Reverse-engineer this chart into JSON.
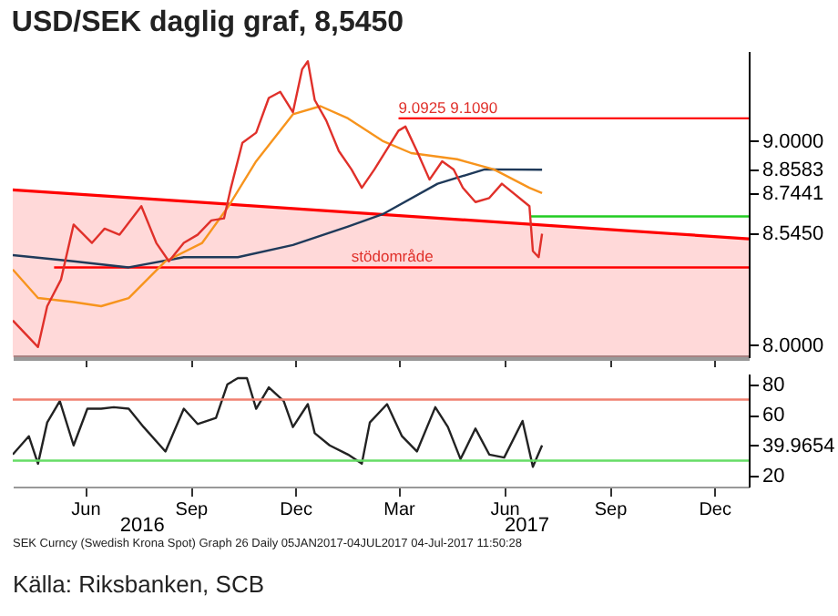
{
  "chart_data": [
    {
      "type": "line",
      "title": "USD/SEK daglig graf, 8,5450",
      "xlim": [
        "2016-03-30",
        "2017-12-31"
      ],
      "ylim": [
        7.94,
        9.44
      ],
      "xticks": [
        {
          "value": "2016-06-01",
          "label": null
        },
        {
          "value": "2016-09-01",
          "label": null
        },
        {
          "value": "2016-12-01",
          "label": null
        },
        {
          "value": "2017-03-01",
          "label": null
        },
        {
          "value": "2017-06-01",
          "label": null
        },
        {
          "value": "2017-09-01",
          "label": null
        },
        {
          "value": "2017-12-01",
          "label": null
        }
      ],
      "yticks": [
        {
          "value": 8,
          "label": "8.0000"
        },
        {
          "value": 8.545,
          "label": "8.5450"
        },
        {
          "value": 8.7441,
          "label": "8.7441"
        },
        {
          "value": 8.8583,
          "label": "8.8583"
        },
        {
          "value": 9,
          "label": "9.0000"
        }
      ],
      "tick_labels": "y",
      "grid": false,
      "series": [
        {
          "type": "area",
          "color": "#ff0000",
          "x": [
            "2016-03-30",
            "2017-12-31"
          ],
          "values": [
            8.76,
            8.52
          ]
        },
        {
          "color": "#ff0000",
          "x": [
            "2016-05-05",
            "2017-12-31"
          ],
          "values": [
            8.38,
            8.38
          ]
        },
        {
          "color": "#ff0000",
          "x": [
            "2017-03-01",
            "2017-12-31"
          ],
          "values": [
            9.11,
            9.11
          ]
        },
        {
          "color": "#22cc22",
          "x": [
            "2017-06-23",
            "2017-12-31"
          ],
          "values": [
            8.63,
            8.63
          ]
        },
        {
          "color": "#1f3a5a",
          "x": [
            "2016-03-30",
            "2016-05-22",
            "2016-07-09",
            "2016-08-26",
            "2016-10-12",
            "2016-11-29",
            "2017-01-16",
            "2017-02-15",
            "2017-04-04",
            "2017-05-15",
            "2017-07-04"
          ],
          "values": [
            8.44,
            8.41,
            8.38,
            8.43,
            8.43,
            8.49,
            8.58,
            8.64,
            8.79,
            8.86,
            8.8583
          ]
        },
        {
          "color": "#f7941d",
          "x": [
            "2016-03-30",
            "2016-04-21",
            "2016-05-22",
            "2016-06-15",
            "2016-07-09",
            "2016-08-10",
            "2016-09-11",
            "2016-10-04",
            "2016-10-28",
            "2016-11-29",
            "2016-12-23",
            "2017-01-16",
            "2017-02-15",
            "2017-03-12",
            "2017-04-21",
            "2017-05-23",
            "2017-06-23",
            "2017-07-04"
          ],
          "values": [
            8.37,
            8.23,
            8.21,
            8.19,
            8.23,
            8.41,
            8.5,
            8.68,
            8.9,
            9.13,
            9.17,
            9.11,
            9.0,
            8.94,
            8.91,
            8.86,
            8.77,
            8.7441
          ]
        },
        {
          "color": "#e0302a",
          "x": [
            "2016-03-30",
            "2016-04-21",
            "2016-04-29",
            "2016-05-11",
            "2016-05-22",
            "2016-06-07",
            "2016-06-18",
            "2016-07-01",
            "2016-07-20",
            "2016-08-02",
            "2016-08-13",
            "2016-08-26",
            "2016-09-07",
            "2016-09-19",
            "2016-09-30",
            "2016-10-06",
            "2016-10-16",
            "2016-10-28",
            "2016-11-08",
            "2016-11-18",
            "2016-11-29",
            "2016-12-07",
            "2016-12-12",
            "2016-12-18",
            "2016-12-28",
            "2017-01-08",
            "2017-01-19",
            "2017-01-28",
            "2017-02-08",
            "2017-02-19",
            "2017-03-01",
            "2017-03-07",
            "2017-03-17",
            "2017-03-28",
            "2017-04-08",
            "2017-04-18",
            "2017-04-26",
            "2017-05-07",
            "2017-05-19",
            "2017-05-30",
            "2017-06-23",
            "2017-06-26",
            "2017-07-01",
            "2017-07-04"
          ],
          "values": [
            8.12,
            7.99,
            8.19,
            8.32,
            8.59,
            8.5,
            8.57,
            8.54,
            8.68,
            8.5,
            8.41,
            8.5,
            8.54,
            8.61,
            8.62,
            8.77,
            8.99,
            9.04,
            9.21,
            9.24,
            9.14,
            9.35,
            9.39,
            9.2,
            9.1,
            8.95,
            8.86,
            8.77,
            8.86,
            8.96,
            9.05,
            9.07,
            8.95,
            8.81,
            8.9,
            8.86,
            8.77,
            8.7,
            8.72,
            8.79,
            8.68,
            8.46,
            8.43,
            8.545
          ]
        }
      ],
      "annotations": [
        {
          "text": "9.0925",
          "x": "2017-03-01",
          "y": 9.11
        },
        {
          "text": "9.1090",
          "x": "2017-04-15",
          "y": 9.11
        },
        {
          "text": "stödområde",
          "x": "2017-01-19",
          "y": 8.38
        }
      ]
    },
    {
      "type": "line",
      "xlim": [
        "2016-03-30",
        "2017-12-31"
      ],
      "ylim": [
        13,
        87
      ],
      "xticks": [
        {
          "value": "2016-06-01",
          "label": "Jun"
        },
        {
          "value": "2016-09-01",
          "label": "Sep"
        },
        {
          "value": "2016-12-01",
          "label": "Dec"
        },
        {
          "value": "2017-03-01",
          "label": "Mar"
        },
        {
          "value": "2017-06-01",
          "label": "Jun"
        },
        {
          "value": "2017-09-01",
          "label": "Sep"
        },
        {
          "value": "2017-12-01",
          "label": "Dec"
        }
      ],
      "x2lim": [
        "2016-03-30",
        "2017-12-31"
      ],
      "x2ticks": [
        {
          "value": "2016-07-20",
          "label": "2016"
        },
        {
          "value": "2017-06-20",
          "label": "2017"
        }
      ],
      "yticks": [
        20,
        {
          "value": 39.9654,
          "label": "39.9654"
        },
        60,
        80
      ],
      "grid": false,
      "ref_lines": [
        {
          "axis": "y",
          "value": 70,
          "color": "#f08070"
        },
        {
          "axis": "y",
          "value": 30,
          "color": "#66dd66"
        }
      ],
      "series": [
        {
          "color": "#222222",
          "x": [
            "2016-03-30",
            "2016-04-13",
            "2016-04-21",
            "2016-04-29",
            "2016-05-10",
            "2016-05-22",
            "2016-06-03",
            "2016-06-15",
            "2016-06-26",
            "2016-07-09",
            "2016-07-22",
            "2016-08-10",
            "2016-08-26",
            "2016-09-07",
            "2016-09-23",
            "2016-10-03",
            "2016-10-12",
            "2016-10-20",
            "2016-10-28",
            "2016-11-08",
            "2016-11-21",
            "2016-11-29",
            "2016-12-12",
            "2016-12-18",
            "2016-12-31",
            "2017-01-16",
            "2017-01-28",
            "2017-02-04",
            "2017-02-19",
            "2017-03-04",
            "2017-03-17",
            "2017-04-02",
            "2017-04-13",
            "2017-04-24",
            "2017-05-07",
            "2017-05-19",
            "2017-06-01",
            "2017-06-17",
            "2017-06-26",
            "2017-07-04"
          ],
          "values": [
            34,
            46,
            28,
            55,
            69,
            40,
            64,
            64,
            65,
            64,
            52,
            36,
            64,
            54,
            58,
            80,
            84,
            84,
            64,
            78,
            69,
            52,
            67,
            48,
            40,
            34,
            28,
            55,
            67,
            46,
            36,
            65,
            52,
            31,
            51,
            34,
            32,
            56,
            26,
            39.9654
          ]
        }
      ],
      "annotations": [
        "SEK Curncy (Swedish Krona Spot) Graph 26 Daily 05JAN2017-04JUL2017   04-Jul-2017 11:50:28",
        "Källa: Riksbanken, SCB"
      ]
    }
  ]
}
